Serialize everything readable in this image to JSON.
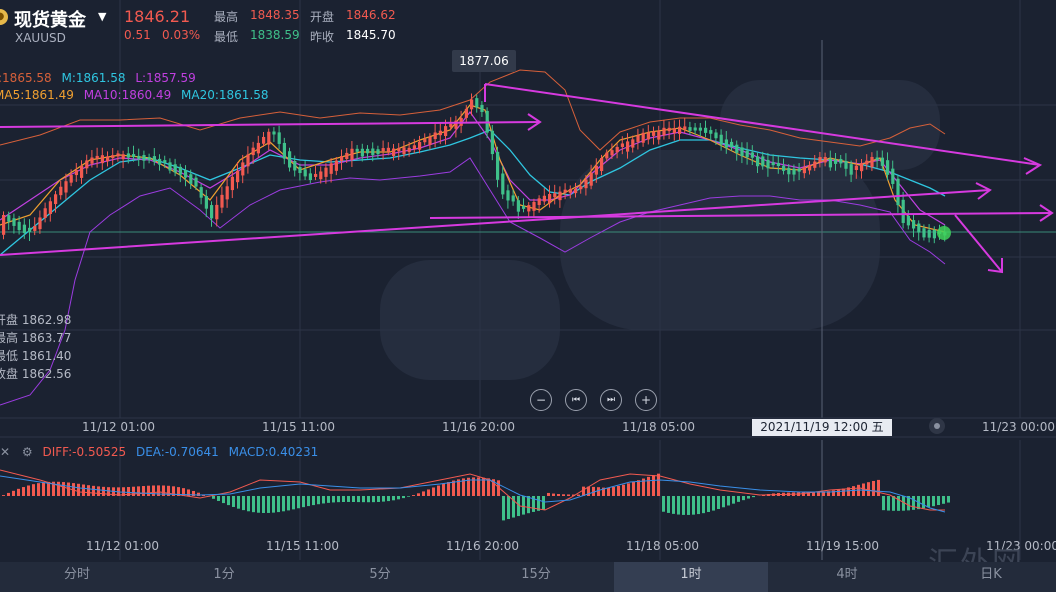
{
  "header": {
    "title": "现货黄金",
    "symbol": "XAUUSD",
    "price": "1846.21",
    "change": "0.51",
    "change_pct": "0.03%",
    "high_label": "最高",
    "high": "1848.35",
    "open_label": "开盘",
    "open": "1846.62",
    "low_label": "最低",
    "low": "1838.59",
    "prev_close_label": "昨收",
    "prev_close": "1845.70"
  },
  "indicators": {
    "boll": {
      "u": ":1865.58",
      "m": "M:1861.58",
      "l": "L:1857.59"
    },
    "ma": {
      "ma5": "MA5:1861.49",
      "ma10": "MA10:1860.49",
      "ma20": "MA20:1861.58"
    },
    "macd": {
      "diff": "DIFF:-0.50525",
      "dea": "DEA:-0.70641",
      "macd": "MACD:0.40231"
    }
  },
  "crosshair_ohlc": {
    "open": "开盘 1862.98",
    "high": "最高 1863.77",
    "low": "最低 1861.40",
    "close": "收盘 1862.56"
  },
  "peak_label": "1877.06",
  "crosshair_time": "2021/11/19 12:00 五",
  "time_axis_main": [
    "11/12 01:00",
    "11/15 11:00",
    "11/16 20:00",
    "11/18 05:00",
    "11/23 00:00"
  ],
  "time_axis_macd": [
    "11/12 01:00",
    "11/15 11:00",
    "11/16 20:00",
    "11/18 05:00",
    "11/19 15:00",
    "11/23 00:00"
  ],
  "controls": {
    "zoom_out": "−",
    "prev": "⏮",
    "next": "⏭",
    "zoom_in": "+"
  },
  "tabs": [
    "分时",
    "1分",
    "5分",
    "15分",
    "1时",
    "4时",
    "日K"
  ],
  "active_tab": "1时",
  "watermark": "汇外网",
  "chart_data": {
    "type": "candlestick",
    "symbol": "XAUUSD",
    "timeframe": "1时",
    "annotations": [
      "1877.06"
    ]
  },
  "colors": {
    "up": "#f25a50",
    "down": "#3fc08a",
    "trendline": "#d63adf",
    "boll": "#d6603a",
    "ma5": "#f0a030",
    "ma10": "#c040e0",
    "ma20": "#2fc6e0"
  }
}
